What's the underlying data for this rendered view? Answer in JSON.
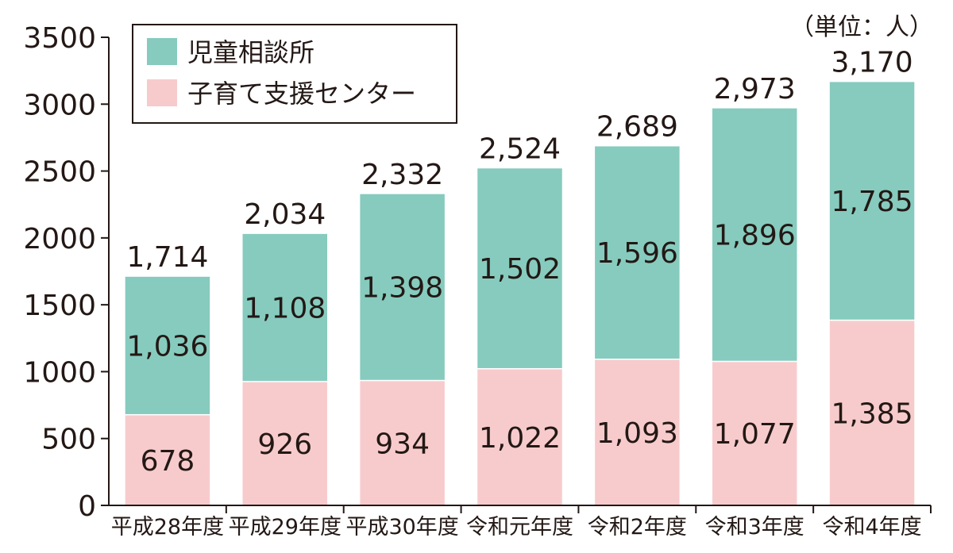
{
  "chart_data": {
    "type": "bar",
    "stacked": true,
    "unit_note": "（単位：人）",
    "categories": [
      "平成28年度",
      "平成29年度",
      "平成30年度",
      "令和元年度",
      "令和2年度",
      "令和3年度",
      "令和4年度"
    ],
    "series": [
      {
        "name": "子育て支援センター",
        "color": "#f7cbcc",
        "values": [
          678,
          926,
          934,
          1022,
          1093,
          1077,
          1385
        ],
        "labels": [
          "678",
          "926",
          "934",
          "1,022",
          "1,093",
          "1,077",
          "1,385"
        ]
      },
      {
        "name": "児童相談所",
        "color": "#86cbbe",
        "values": [
          1036,
          1108,
          1398,
          1502,
          1596,
          1896,
          1785
        ],
        "labels": [
          "1,036",
          "1,108",
          "1,398",
          "1,502",
          "1,596",
          "1,896",
          "1,785"
        ]
      }
    ],
    "totals": [
      "1,714",
      "2,034",
      "2,332",
      "2,524",
      "2,689",
      "2,973",
      "3,170"
    ],
    "legend_order": [
      "児童相談所",
      "子育て支援センター"
    ],
    "legend_position": "top-left",
    "ylim": [
      0,
      3500
    ],
    "yticks": [
      "0",
      "500",
      "1000",
      "1500",
      "2000",
      "2500",
      "3000",
      "3500"
    ],
    "xlabel": "",
    "ylabel": "",
    "grid": false
  }
}
